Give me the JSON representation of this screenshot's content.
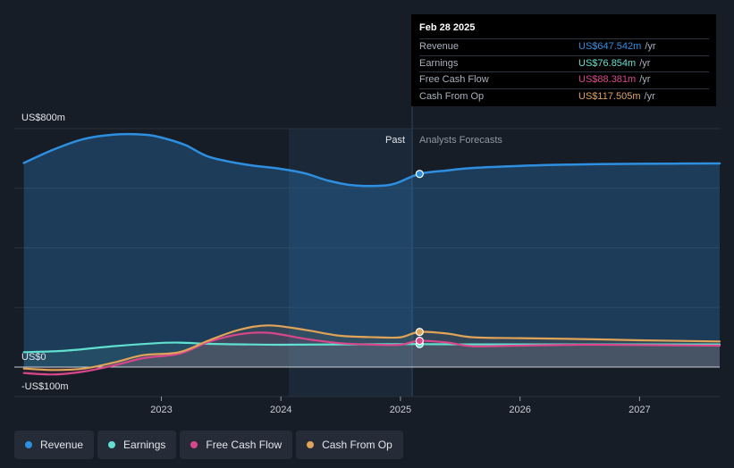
{
  "tooltip": {
    "date": "Feb 28 2025",
    "rows": [
      {
        "label": "Revenue",
        "value": "US$647.542m",
        "unit": "/yr",
        "color": "#2e8fe0"
      },
      {
        "label": "Earnings",
        "value": "US$76.854m",
        "unit": "/yr",
        "color": "#5fe0d0"
      },
      {
        "label": "Free Cash Flow",
        "value": "US$88.381m",
        "unit": "/yr",
        "color": "#d9468c"
      },
      {
        "label": "Cash From Op",
        "value": "US$117.505m",
        "unit": "/yr",
        "color": "#e0a458"
      }
    ]
  },
  "legend": [
    {
      "label": "Revenue",
      "color": "#2e8fe0"
    },
    {
      "label": "Earnings",
      "color": "#5fe0d0"
    },
    {
      "label": "Free Cash Flow",
      "color": "#d9468c"
    },
    {
      "label": "Cash From Op",
      "color": "#e0a458"
    }
  ],
  "chart_data": {
    "type": "line",
    "title": "",
    "y_tick_labels": [
      "US$800m",
      "US$0",
      "-US$100m"
    ],
    "x_tick_labels": [
      "2023",
      "2024",
      "2025",
      "2026",
      "2027"
    ],
    "period_labels": {
      "past": "Past",
      "forecast": "Analysts Forecasts"
    },
    "past_start": 2024.17,
    "past_end": 2025.16,
    "marker_x": 2025.16,
    "xlim": [
      2021.77,
      2027.67
    ],
    "ylim": [
      -100,
      800
    ],
    "series": [
      {
        "name": "Revenue",
        "color": "#2e8fe0",
        "x": [
          2021.85,
          2022.1,
          2022.35,
          2022.6,
          2022.85,
          2023.0,
          2023.2,
          2023.4,
          2023.7,
          2024.0,
          2024.2,
          2024.4,
          2024.6,
          2024.8,
          2024.95,
          2025.16,
          2025.4,
          2025.6,
          2026.0,
          2026.5,
          2027.0,
          2027.67
        ],
        "y": [
          685,
          730,
          765,
          780,
          780,
          770,
          745,
          705,
          680,
          665,
          650,
          625,
          610,
          608,
          615,
          648,
          660,
          668,
          675,
          680,
          682,
          683
        ]
      },
      {
        "name": "Earnings",
        "color": "#5fe0d0",
        "x": [
          2021.85,
          2022.2,
          2022.6,
          2022.95,
          2023.15,
          2023.4,
          2023.7,
          2024.0,
          2024.5,
          2025.0,
          2025.16,
          2025.6,
          2026.0,
          2026.5,
          2027.0,
          2027.67
        ],
        "y": [
          50,
          55,
          70,
          80,
          82,
          78,
          76,
          75,
          76,
          77,
          77,
          76,
          76,
          76,
          76,
          76
        ]
      },
      {
        "name": "Free Cash Flow",
        "color": "#d9468c",
        "x": [
          2021.85,
          2022.1,
          2022.35,
          2022.6,
          2022.85,
          2023.15,
          2023.4,
          2023.65,
          2023.9,
          2024.2,
          2024.5,
          2024.8,
          2025.0,
          2025.16,
          2025.4,
          2025.6,
          2026.0,
          2026.5,
          2027.0,
          2027.67
        ],
        "y": [
          -20,
          -25,
          -15,
          5,
          30,
          45,
          85,
          110,
          115,
          95,
          80,
          75,
          75,
          88,
          82,
          70,
          72,
          75,
          74,
          72
        ]
      },
      {
        "name": "Cash From Op",
        "color": "#e0a458",
        "x": [
          2021.85,
          2022.1,
          2022.35,
          2022.6,
          2022.85,
          2023.15,
          2023.4,
          2023.65,
          2023.9,
          2024.2,
          2024.5,
          2024.8,
          2025.0,
          2025.16,
          2025.4,
          2025.6,
          2026.0,
          2026.5,
          2027.0,
          2027.67
        ],
        "y": [
          -5,
          -10,
          -5,
          15,
          40,
          50,
          90,
          125,
          140,
          125,
          105,
          100,
          100,
          118,
          112,
          100,
          97,
          94,
          90,
          86
        ]
      }
    ]
  }
}
